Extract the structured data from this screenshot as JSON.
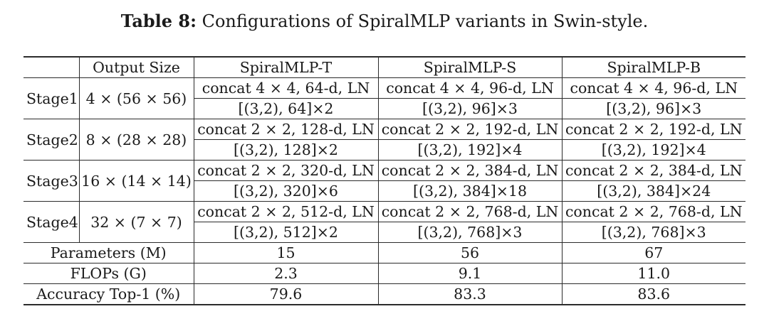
{
  "caption": {
    "label": "Table 8:",
    "text": "Configurations of SpiralMLP variants in Swin-style."
  },
  "header": [
    "",
    "Output Size",
    "SpiralMLP-T",
    "SpiralMLP-S",
    "SpiralMLP-B"
  ],
  "stages": [
    {
      "name": "Stage1",
      "output_size": "4 × (56 × 56)",
      "concat": [
        "concat 4 × 4, 64-d, LN",
        "concat 4 × 4, 96-d, LN",
        "concat 4 × 4, 96-d, LN"
      ],
      "blocks": [
        "[(3,2), 64]×2",
        "[(3,2), 96]×3",
        "[(3,2), 96]×3"
      ]
    },
    {
      "name": "Stage2",
      "output_size": "8 × (28 × 28)",
      "concat": [
        "concat 2 × 2, 128-d, LN",
        "concat 2 × 2, 192-d, LN",
        "concat 2 × 2, 192-d, LN"
      ],
      "blocks": [
        "[(3,2), 128]×2",
        "[(3,2), 192]×4",
        "[(3,2), 192]×4"
      ]
    },
    {
      "name": "Stage3",
      "output_size": "16 × (14 × 14)",
      "concat": [
        "concat 2 × 2, 320-d, LN",
        "concat 2 × 2, 384-d, LN",
        "concat 2 × 2, 384-d, LN"
      ],
      "blocks": [
        "[(3,2), 320]×6",
        "[(3,2), 384]×18",
        "[(3,2), 384]×24"
      ]
    },
    {
      "name": "Stage4",
      "output_size": "32 × (7 × 7)",
      "concat": [
        "concat 2 × 2, 512-d, LN",
        "concat 2 × 2, 768-d, LN",
        "concat 2 × 2, 768-d, LN"
      ],
      "blocks": [
        "[(3,2), 512]×2",
        "[(3,2), 768]×3",
        "[(3,2), 768]×3"
      ]
    }
  ],
  "summary": [
    {
      "label": "Parameters (M)",
      "values": [
        "15",
        "56",
        "67"
      ]
    },
    {
      "label": "FLOPs (G)",
      "values": [
        "2.3",
        "9.1",
        "11.0"
      ]
    },
    {
      "label": "Accuracy Top-1 (%)",
      "values": [
        "79.6",
        "83.3",
        "83.6"
      ]
    }
  ]
}
